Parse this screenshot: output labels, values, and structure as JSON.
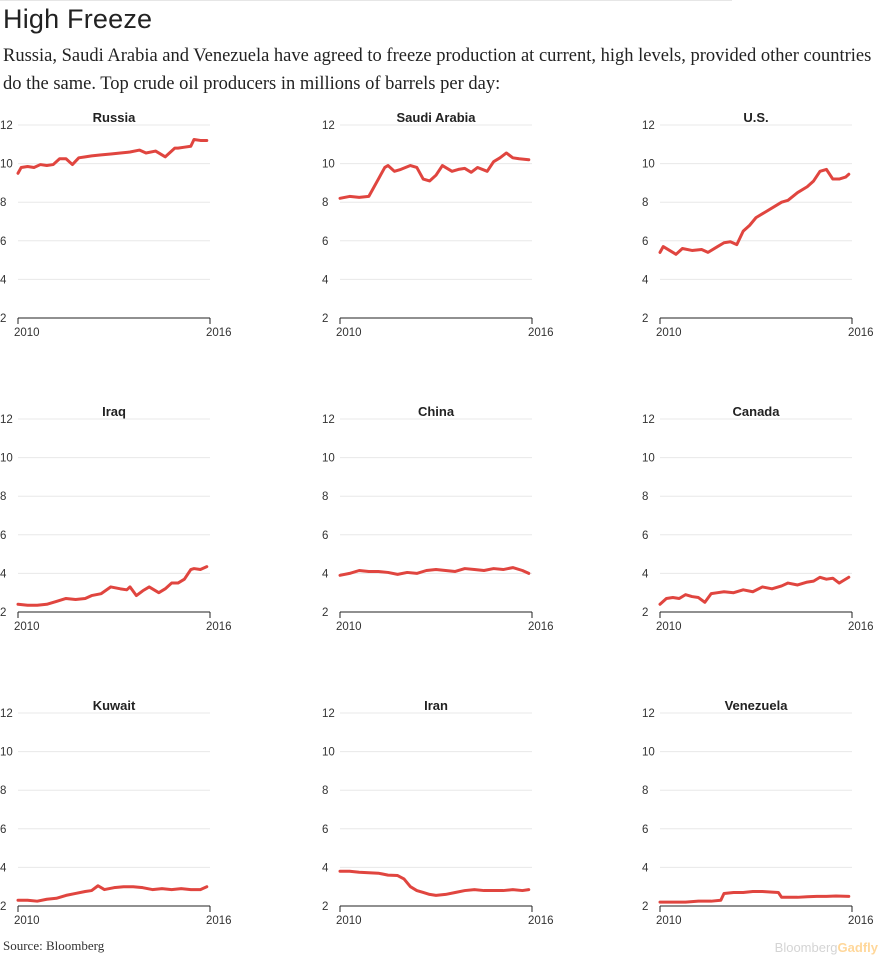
{
  "header": {
    "title": "High Freeze",
    "subtitle": "Russia, Saudi Arabia and Venezuela have agreed to freeze production at current, high levels, provided other countries do the same. Top crude oil producers  in millions of barrels per day:"
  },
  "footer": {
    "source": "Source: Bloomberg",
    "brand_part1": "Bloomberg",
    "brand_part2": "Gadfly"
  },
  "colors": {
    "line": "#e0453f",
    "grid": "#e8e8e8",
    "axis": "#222222",
    "text": "#222222"
  },
  "chart_data": [
    {
      "type": "line",
      "title": "Russia",
      "x_ticks": [
        "2010",
        "2016"
      ],
      "xlim": [
        2010,
        2016
      ],
      "ylim": [
        2,
        12
      ],
      "yticks": [
        2,
        4,
        6,
        8,
        10,
        12
      ],
      "grid": true,
      "x": [
        2010.0,
        2010.1,
        2010.3,
        2010.5,
        2010.7,
        2010.9,
        2011.1,
        2011.3,
        2011.5,
        2011.7,
        2011.9,
        2012.1,
        2012.3,
        2012.6,
        2012.9,
        2013.2,
        2013.5,
        2013.8,
        2014.0,
        2014.3,
        2014.6,
        2014.9,
        2015.0,
        2015.2,
        2015.4,
        2015.5,
        2015.7,
        2015.9
      ],
      "values": [
        9.5,
        9.8,
        9.85,
        9.8,
        9.95,
        9.9,
        9.95,
        10.25,
        10.25,
        9.95,
        10.3,
        10.35,
        10.4,
        10.45,
        10.5,
        10.55,
        10.6,
        10.7,
        10.55,
        10.65,
        10.35,
        10.8,
        10.8,
        10.85,
        10.9,
        11.25,
        11.2,
        11.2
      ]
    },
    {
      "type": "line",
      "title": "Saudi Arabia",
      "x_ticks": [
        "2010",
        "2016"
      ],
      "xlim": [
        2010,
        2016
      ],
      "ylim": [
        2,
        12
      ],
      "yticks": [
        2,
        4,
        6,
        8,
        10,
        12
      ],
      "grid": true,
      "x": [
        2010.0,
        2010.3,
        2010.6,
        2010.9,
        2011.0,
        2011.2,
        2011.4,
        2011.5,
        2011.7,
        2011.9,
        2012.2,
        2012.4,
        2012.6,
        2012.8,
        2013.0,
        2013.2,
        2013.5,
        2013.7,
        2013.9,
        2014.1,
        2014.3,
        2014.6,
        2014.8,
        2015.0,
        2015.2,
        2015.4,
        2015.6,
        2015.9
      ],
      "values": [
        8.2,
        8.3,
        8.25,
        8.3,
        8.6,
        9.2,
        9.8,
        9.9,
        9.6,
        9.7,
        9.9,
        9.8,
        9.2,
        9.1,
        9.4,
        9.9,
        9.6,
        9.7,
        9.75,
        9.55,
        9.8,
        9.6,
        10.1,
        10.3,
        10.55,
        10.3,
        10.25,
        10.2
      ]
    },
    {
      "type": "line",
      "title": "U.S.",
      "x_ticks": [
        "2010",
        "2016"
      ],
      "xlim": [
        2010,
        2016
      ],
      "ylim": [
        2,
        12
      ],
      "yticks": [
        2,
        4,
        6,
        8,
        10,
        12
      ],
      "grid": true,
      "x": [
        2010.0,
        2010.1,
        2010.3,
        2010.5,
        2010.7,
        2011.0,
        2011.3,
        2011.5,
        2011.8,
        2012.0,
        2012.2,
        2012.4,
        2012.6,
        2012.8,
        2013.0,
        2013.3,
        2013.6,
        2013.8,
        2014.0,
        2014.3,
        2014.6,
        2014.8,
        2015.0,
        2015.2,
        2015.4,
        2015.6,
        2015.8,
        2015.9
      ],
      "values": [
        5.4,
        5.7,
        5.5,
        5.3,
        5.6,
        5.5,
        5.55,
        5.4,
        5.7,
        5.9,
        5.95,
        5.8,
        6.5,
        6.8,
        7.2,
        7.5,
        7.8,
        8.0,
        8.1,
        8.5,
        8.8,
        9.1,
        9.6,
        9.7,
        9.2,
        9.2,
        9.3,
        9.45
      ]
    },
    {
      "type": "line",
      "title": "Iraq",
      "x_ticks": [
        "2010",
        "2016"
      ],
      "xlim": [
        2010,
        2016
      ],
      "ylim": [
        2,
        12
      ],
      "yticks": [
        2,
        4,
        6,
        8,
        10,
        12
      ],
      "grid": true,
      "x": [
        2010.0,
        2010.3,
        2010.6,
        2010.9,
        2011.2,
        2011.5,
        2011.8,
        2012.1,
        2012.3,
        2012.6,
        2012.9,
        2013.2,
        2013.4,
        2013.5,
        2013.7,
        2013.9,
        2014.1,
        2014.4,
        2014.6,
        2014.8,
        2015.0,
        2015.2,
        2015.4,
        2015.5,
        2015.7,
        2015.9
      ],
      "values": [
        2.4,
        2.35,
        2.35,
        2.4,
        2.55,
        2.7,
        2.65,
        2.7,
        2.85,
        2.95,
        3.3,
        3.2,
        3.15,
        3.3,
        2.85,
        3.1,
        3.3,
        3.0,
        3.2,
        3.5,
        3.5,
        3.7,
        4.2,
        4.25,
        4.2,
        4.35
      ]
    },
    {
      "type": "line",
      "title": "China",
      "x_ticks": [
        "2010",
        "2016"
      ],
      "xlim": [
        2010,
        2016
      ],
      "ylim": [
        2,
        12
      ],
      "yticks": [
        2,
        4,
        6,
        8,
        10,
        12
      ],
      "grid": true,
      "x": [
        2010.0,
        2010.3,
        2010.6,
        2010.9,
        2011.2,
        2011.5,
        2011.8,
        2012.1,
        2012.4,
        2012.7,
        2013.0,
        2013.3,
        2013.6,
        2013.9,
        2014.2,
        2014.5,
        2014.8,
        2015.1,
        2015.4,
        2015.7,
        2015.9
      ],
      "values": [
        3.9,
        4.0,
        4.15,
        4.1,
        4.1,
        4.05,
        3.95,
        4.05,
        4.0,
        4.15,
        4.2,
        4.15,
        4.1,
        4.25,
        4.2,
        4.15,
        4.25,
        4.2,
        4.3,
        4.15,
        4.0
      ]
    },
    {
      "type": "line",
      "title": "Canada",
      "x_ticks": [
        "2010",
        "2016"
      ],
      "xlim": [
        2010,
        2016
      ],
      "ylim": [
        2,
        12
      ],
      "yticks": [
        2,
        4,
        6,
        8,
        10,
        12
      ],
      "grid": true,
      "x": [
        2010.0,
        2010.2,
        2010.4,
        2010.6,
        2010.8,
        2011.0,
        2011.2,
        2011.4,
        2011.6,
        2011.8,
        2012.0,
        2012.3,
        2012.6,
        2012.9,
        2013.2,
        2013.5,
        2013.8,
        2014.0,
        2014.3,
        2014.6,
        2014.8,
        2015.0,
        2015.2,
        2015.4,
        2015.6,
        2015.7,
        2015.9
      ],
      "values": [
        2.4,
        2.7,
        2.75,
        2.7,
        2.9,
        2.8,
        2.75,
        2.5,
        2.95,
        3.0,
        3.05,
        3.0,
        3.15,
        3.05,
        3.3,
        3.2,
        3.35,
        3.5,
        3.4,
        3.55,
        3.6,
        3.8,
        3.7,
        3.75,
        3.5,
        3.6,
        3.8
      ]
    },
    {
      "type": "line",
      "title": "Kuwait",
      "x_ticks": [
        "2010",
        "2016"
      ],
      "xlim": [
        2010,
        2016
      ],
      "ylim": [
        2,
        12
      ],
      "yticks": [
        2,
        4,
        6,
        8,
        10,
        12
      ],
      "grid": true,
      "x": [
        2010.0,
        2010.3,
        2010.6,
        2010.9,
        2011.2,
        2011.5,
        2011.8,
        2012.1,
        2012.3,
        2012.5,
        2012.7,
        2013.0,
        2013.3,
        2013.6,
        2013.9,
        2014.2,
        2014.5,
        2014.8,
        2015.1,
        2015.4,
        2015.7,
        2015.9
      ],
      "values": [
        2.3,
        2.3,
        2.25,
        2.35,
        2.4,
        2.55,
        2.65,
        2.75,
        2.8,
        3.05,
        2.85,
        2.95,
        3.0,
        3.0,
        2.95,
        2.85,
        2.9,
        2.85,
        2.9,
        2.85,
        2.85,
        3.0
      ]
    },
    {
      "type": "line",
      "title": "Iran",
      "x_ticks": [
        "2010",
        "2016"
      ],
      "xlim": [
        2010,
        2016
      ],
      "ylim": [
        2,
        12
      ],
      "yticks": [
        2,
        4,
        6,
        8,
        10,
        12
      ],
      "grid": true,
      "x": [
        2010.0,
        2010.3,
        2010.6,
        2010.9,
        2011.2,
        2011.5,
        2011.8,
        2012.0,
        2012.2,
        2012.4,
        2012.6,
        2012.8,
        2013.0,
        2013.3,
        2013.6,
        2013.9,
        2014.2,
        2014.5,
        2014.8,
        2015.1,
        2015.4,
        2015.7,
        2015.9
      ],
      "values": [
        3.8,
        3.8,
        3.75,
        3.72,
        3.7,
        3.6,
        3.58,
        3.4,
        3.0,
        2.8,
        2.7,
        2.6,
        2.55,
        2.6,
        2.7,
        2.8,
        2.85,
        2.8,
        2.8,
        2.8,
        2.85,
        2.8,
        2.85
      ]
    },
    {
      "type": "line",
      "title": "Venezuela",
      "x_ticks": [
        "2010",
        "2016"
      ],
      "xlim": [
        2010,
        2016
      ],
      "ylim": [
        2,
        12
      ],
      "yticks": [
        2,
        4,
        6,
        8,
        10,
        12
      ],
      "grid": true,
      "x": [
        2010.0,
        2010.4,
        2010.8,
        2011.2,
        2011.6,
        2011.9,
        2012.0,
        2012.3,
        2012.6,
        2012.9,
        2013.2,
        2013.5,
        2013.7,
        2013.8,
        2014.0,
        2014.3,
        2014.6,
        2014.9,
        2015.2,
        2015.5,
        2015.9
      ],
      "values": [
        2.2,
        2.2,
        2.2,
        2.25,
        2.25,
        2.3,
        2.65,
        2.7,
        2.7,
        2.75,
        2.75,
        2.72,
        2.7,
        2.45,
        2.45,
        2.45,
        2.48,
        2.5,
        2.5,
        2.52,
        2.5
      ]
    }
  ]
}
